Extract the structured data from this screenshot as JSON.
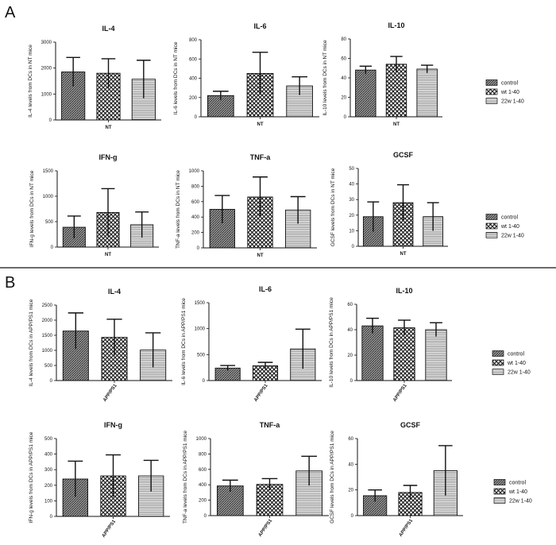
{
  "panels": [
    {
      "letter": "A"
    },
    {
      "letter": "B"
    }
  ],
  "legend_entries": [
    "control",
    "wt 1-40",
    "22w 1-40"
  ],
  "chart_data": [
    {
      "type": "bar",
      "panel": "A",
      "title": "IL-4",
      "xlabel": "NT",
      "ylabel": "IL-4 levels from DCs in NT mice",
      "categories": [
        "control",
        "wt 1-40",
        "22w 1-40"
      ],
      "values": [
        1850,
        1800,
        1570
      ],
      "errors": [
        560,
        560,
        730
      ],
      "ylim": [
        0,
        3000
      ],
      "yticks": [
        0,
        1000,
        2000,
        3000
      ]
    },
    {
      "type": "bar",
      "panel": "A",
      "title": "IL-6",
      "xlabel": "NT",
      "ylabel": "IL-6 levels from DCs in NT mice",
      "categories": [
        "control",
        "wt 1-40",
        "22w 1-40"
      ],
      "values": [
        220,
        450,
        320
      ],
      "errors": [
        45,
        220,
        95
      ],
      "ylim": [
        0,
        800
      ],
      "yticks": [
        0,
        200,
        400,
        600,
        800
      ]
    },
    {
      "type": "bar",
      "panel": "A",
      "title": "IL-10",
      "xlabel": "NT",
      "ylabel": "IL-10 levels from DCs in NT mice",
      "categories": [
        "control",
        "wt 1-40",
        "22w 1-40"
      ],
      "values": [
        48,
        54,
        49
      ],
      "errors": [
        4,
        8,
        4
      ],
      "ylim": [
        0,
        80
      ],
      "yticks": [
        0,
        20,
        40,
        60,
        80
      ]
    },
    {
      "type": "bar",
      "panel": "A",
      "title": "IFN-g",
      "xlabel": "NT",
      "ylabel": "IFN-g levels from DCs in NT mice",
      "categories": [
        "control",
        "wt 1-40",
        "22w 1-40"
      ],
      "values": [
        390,
        680,
        440
      ],
      "errors": [
        220,
        470,
        250
      ],
      "ylim": [
        0,
        1500
      ],
      "yticks": [
        0,
        500,
        1000,
        1500
      ]
    },
    {
      "type": "bar",
      "panel": "A",
      "title": "TNF-a",
      "xlabel": "NT",
      "ylabel": "TNF-a levels from DCs in NT mice",
      "categories": [
        "control",
        "wt 1-40",
        "22w 1-40"
      ],
      "values": [
        500,
        660,
        490
      ],
      "errors": [
        180,
        260,
        175
      ],
      "ylim": [
        0,
        1000
      ],
      "yticks": [
        0,
        200,
        400,
        600,
        800,
        1000
      ]
    },
    {
      "type": "bar",
      "panel": "A",
      "title": "GCSF",
      "xlabel": "NT",
      "ylabel": "GCSF levels from DCs in NT mice",
      "categories": [
        "control",
        "wt 1-40",
        "22w 1-40"
      ],
      "values": [
        19,
        28,
        19
      ],
      "errors": [
        9.5,
        11.5,
        9
      ],
      "ylim": [
        0,
        50
      ],
      "yticks": [
        0,
        10,
        20,
        30,
        40,
        50
      ]
    },
    {
      "type": "bar",
      "panel": "B",
      "title": "IL-4",
      "xlabel": "APP/PS1",
      "ylabel": "IL-4 levels from DCs in APP/PS1 mice",
      "categories": [
        "control",
        "wt 1-40",
        "22w 1-40"
      ],
      "values": [
        1640,
        1430,
        1010
      ],
      "errors": [
        600,
        600,
        570
      ],
      "ylim": [
        0,
        2500
      ],
      "yticks": [
        0,
        500,
        1000,
        1500,
        2000,
        2500
      ]
    },
    {
      "type": "bar",
      "panel": "B",
      "title": "IL-6",
      "xlabel": "APP/PS1",
      "ylabel": "IL-6 levels from DCs in APP/PS1 mice",
      "categories": [
        "control",
        "wt 1-40",
        "22w 1-40"
      ],
      "values": [
        240,
        285,
        610
      ],
      "errors": [
        50,
        65,
        380
      ],
      "ylim": [
        0,
        1500
      ],
      "yticks": [
        0,
        500,
        1000,
        1500
      ]
    },
    {
      "type": "bar",
      "panel": "B",
      "title": "IL-10",
      "xlabel": "APP/PS1",
      "ylabel": "IL-10 levels from DCs in APP/PS1 mice",
      "categories": [
        "control",
        "wt 1-40",
        "22w 1-40"
      ],
      "values": [
        43,
        41.5,
        40
      ],
      "errors": [
        6,
        6,
        5.5
      ],
      "ylim": [
        0,
        60
      ],
      "yticks": [
        0,
        20,
        40,
        60
      ]
    },
    {
      "type": "bar",
      "panel": "B",
      "title": "IFN-g",
      "xlabel": "APP/PS1",
      "ylabel": "IFN-g levels from DCs in APP/PS1 mice",
      "categories": [
        "control",
        "wt 1-40",
        "22w 1-40"
      ],
      "values": [
        240,
        260,
        260
      ],
      "errors": [
        115,
        135,
        100
      ],
      "ylim": [
        0,
        500
      ],
      "yticks": [
        0,
        100,
        200,
        300,
        400,
        500
      ]
    },
    {
      "type": "bar",
      "panel": "B",
      "title": "TNF-a",
      "xlabel": "APP/PS1",
      "ylabel": "TNF-a levels from DCs in APP/PS1 mice",
      "categories": [
        "control",
        "wt 1-40",
        "22w 1-40"
      ],
      "values": [
        385,
        405,
        580
      ],
      "errors": [
        75,
        75,
        190
      ],
      "ylim": [
        0,
        1000
      ],
      "yticks": [
        0,
        200,
        400,
        600,
        800,
        1000
      ]
    },
    {
      "type": "bar",
      "panel": "B",
      "title": "GCSF",
      "xlabel": "APP/PS1",
      "ylabel": "GCSF levels from DCs in APP/PS1 mice",
      "categories": [
        "control",
        "wt 1-40",
        "22w 1-40"
      ],
      "values": [
        15.5,
        18,
        35
      ],
      "errors": [
        4.5,
        5.5,
        19.5
      ],
      "ylim": [
        0,
        60
      ],
      "yticks": [
        0,
        20,
        40,
        60
      ]
    }
  ]
}
